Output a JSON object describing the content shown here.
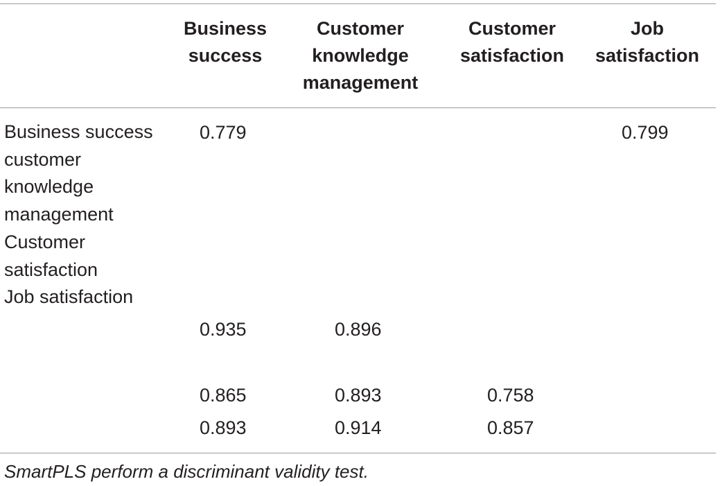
{
  "table": {
    "headers": [
      [
        "Business",
        "success"
      ],
      [
        "Customer",
        "knowledge",
        "management"
      ],
      [
        "Customer",
        "satisfaction"
      ],
      [
        "Job",
        "satisfaction"
      ]
    ],
    "row_label_lines": [
      "Business success",
      "customer",
      "knowledge",
      "management",
      "Customer",
      "satisfaction",
      "Job satisfaction"
    ],
    "rows": [
      [
        "0.779",
        "",
        "",
        "0.799"
      ],
      [
        "0.935",
        "0.896",
        "",
        ""
      ],
      [
        "0.865",
        "0.893",
        "0.758",
        ""
      ],
      [
        "0.893",
        "0.914",
        "0.857",
        ""
      ]
    ]
  },
  "footnote": "SmartPLS perform a discriminant validity test."
}
